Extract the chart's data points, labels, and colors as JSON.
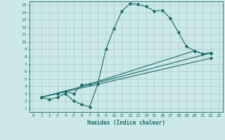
{
  "title": "",
  "xlabel": "Humidex (Indice chaleur)",
  "bg_color": "#cce8e8",
  "grid_color": "#aacccc",
  "line_color": "#1a6b6b",
  "xlim": [
    -0.5,
    23.5
  ],
  "ylim": [
    0.5,
    15.5
  ],
  "xticks": [
    0,
    1,
    2,
    3,
    4,
    5,
    6,
    7,
    8,
    9,
    10,
    11,
    12,
    13,
    14,
    15,
    16,
    17,
    18,
    19,
    20,
    21,
    22,
    23
  ],
  "yticks": [
    1,
    2,
    3,
    4,
    5,
    6,
    7,
    8,
    9,
    10,
    11,
    12,
    13,
    14,
    15
  ],
  "lines": [
    {
      "x": [
        1,
        2,
        3,
        4,
        5,
        6,
        7,
        8,
        9,
        10,
        11,
        12,
        13,
        14,
        15,
        16,
        17,
        18,
        19,
        20,
        21,
        22
      ],
      "y": [
        2.5,
        2.2,
        2.5,
        3.0,
        2.0,
        1.5,
        1.2,
        4.3,
        9.0,
        11.8,
        14.2,
        15.2,
        15.1,
        14.8,
        14.2,
        14.3,
        13.2,
        11.3,
        9.4,
        8.8,
        8.4,
        8.5
      ]
    },
    {
      "x": [
        1,
        3,
        4,
        5,
        6,
        7,
        20,
        21,
        22
      ],
      "y": [
        2.5,
        3.0,
        3.3,
        3.0,
        4.2,
        4.3,
        8.8,
        8.4,
        8.5
      ]
    },
    {
      "x": [
        1,
        22
      ],
      "y": [
        2.5,
        8.5
      ]
    },
    {
      "x": [
        1,
        22
      ],
      "y": [
        2.5,
        7.8
      ]
    }
  ]
}
